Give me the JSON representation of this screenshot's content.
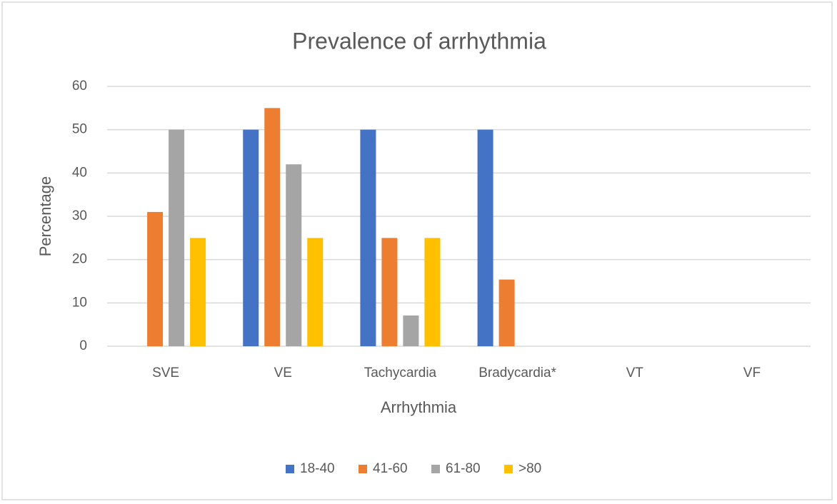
{
  "chart_data": {
    "type": "bar",
    "title": "Prevalence of arrhythmia",
    "x_label": "Arrhythmia",
    "y_label": "Percentage",
    "categories": [
      "SVE",
      "VE",
      "Tachycardia",
      "Bradycardia*",
      "VT",
      "VF"
    ],
    "series": [
      {
        "name": "18-40",
        "color": "#4472c4",
        "values": [
          0,
          50,
          50,
          50,
          0,
          0
        ]
      },
      {
        "name": "41-60",
        "color": "#ed7d31",
        "values": [
          31,
          55,
          25,
          15.4,
          0,
          0
        ]
      },
      {
        "name": "61-80",
        "color": "#a5a5a5",
        "values": [
          50,
          42,
          7.1,
          0,
          0,
          0
        ]
      },
      {
        "name": ">80",
        "color": "#ffc000",
        "values": [
          25,
          25,
          25,
          0,
          0,
          0
        ]
      }
    ],
    "ylim": [
      0,
      60
    ],
    "yticks": [
      0,
      10,
      20,
      30,
      40,
      50,
      60
    ],
    "grid": true,
    "legend": "bottom"
  }
}
